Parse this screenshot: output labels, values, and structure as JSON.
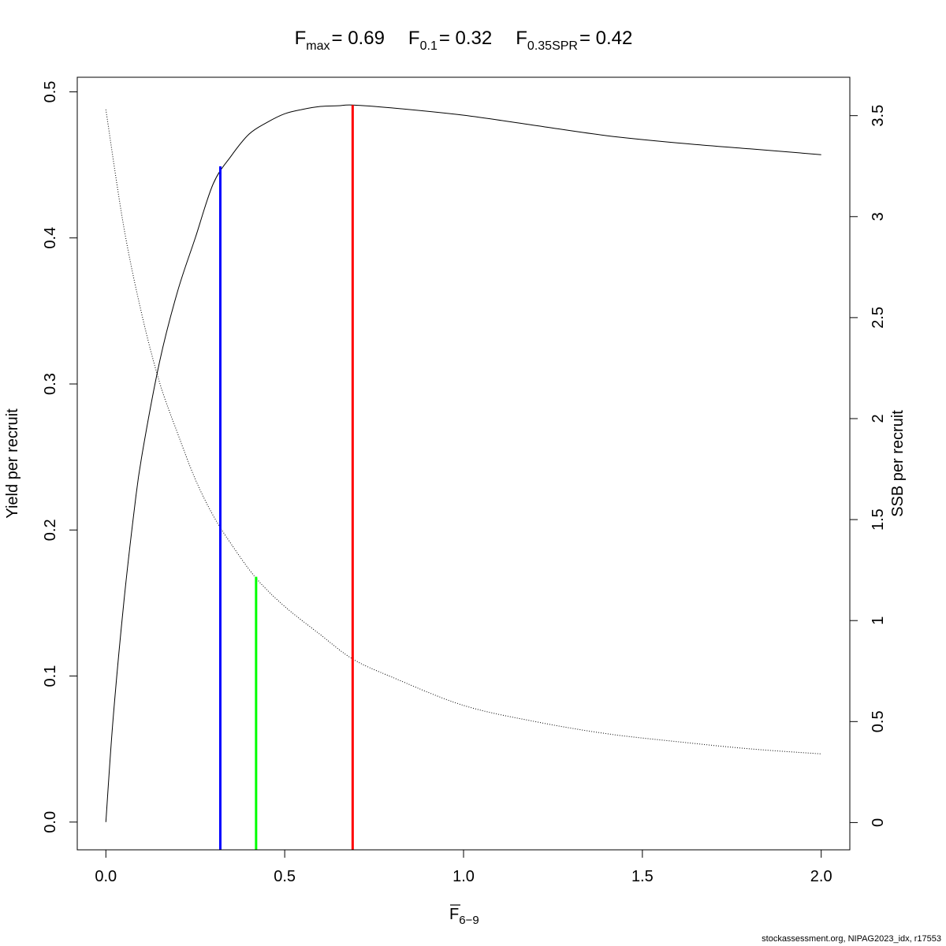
{
  "chart_data": {
    "type": "line",
    "title": {
      "fmax_label": "F",
      "fmax_sub": "max",
      "fmax_value": "= 0.69",
      "f01_label": "F",
      "f01_sub": "0.1",
      "f01_value": "= 0.32",
      "fspr_label": "F",
      "fspr_sub": "0.35SPR",
      "fspr_value": "= 0.42"
    },
    "xlabel": {
      "main": "F",
      "sub": "6−9"
    },
    "ylabel_left": "Yield per recruit",
    "ylabel_right": "SSB per recruit",
    "xlim": [
      -0.08,
      2.08
    ],
    "ylim_left": [
      -0.019,
      0.51
    ],
    "ylim_right": [
      -0.135,
      3.69
    ],
    "x_ticks": [
      "0.0",
      "0.5",
      "1.0",
      "1.5",
      "2.0"
    ],
    "y_left_ticks": [
      "0.0",
      "0.1",
      "0.2",
      "0.3",
      "0.4",
      "0.5"
    ],
    "y_right_ticks": [
      "0",
      "0.5",
      "1",
      "1.5",
      "2",
      "2.5",
      "3",
      "3.5"
    ],
    "series": [
      {
        "axis": "left",
        "style": "solid",
        "x": [
          0,
          0.02,
          0.05,
          0.08,
          0.1,
          0.15,
          0.2,
          0.25,
          0.3,
          0.35,
          0.4,
          0.45,
          0.5,
          0.55,
          0.6,
          0.65,
          0.69,
          0.8,
          1.0,
          1.2,
          1.4,
          1.6,
          1.8,
          2.0
        ],
        "y": [
          0,
          0.07,
          0.15,
          0.215,
          0.25,
          0.315,
          0.363,
          0.4,
          0.437,
          0.456,
          0.471,
          0.479,
          0.485,
          0.488,
          0.49,
          0.4905,
          0.491,
          0.489,
          0.484,
          0.477,
          0.47,
          0.465,
          0.461,
          0.457
        ]
      },
      {
        "axis": "right",
        "style": "dotted",
        "x": [
          0,
          0.05,
          0.1,
          0.15,
          0.2,
          0.25,
          0.3,
          0.35,
          0.42,
          0.5,
          0.6,
          0.69,
          0.8,
          1.0,
          1.2,
          1.4,
          1.6,
          1.8,
          2.0
        ],
        "y": [
          3.53,
          2.95,
          2.52,
          2.18,
          1.93,
          1.7,
          1.52,
          1.38,
          1.21,
          1.07,
          0.93,
          0.81,
          0.72,
          0.58,
          0.5,
          0.44,
          0.4,
          0.365,
          0.34
        ]
      }
    ],
    "reference_lines": [
      {
        "name": "F0.1",
        "x": 0.32,
        "y_top": 0.449,
        "color": "#0000ff"
      },
      {
        "name": "F0.35SPR",
        "x": 0.42,
        "y_top": 0.168,
        "color": "#00ff00"
      },
      {
        "name": "Fmax",
        "x": 0.69,
        "y_top": 0.491,
        "color": "#ff0000"
      }
    ]
  },
  "footer": "stockassessment.org, NIPAG2023_idx, r17553"
}
